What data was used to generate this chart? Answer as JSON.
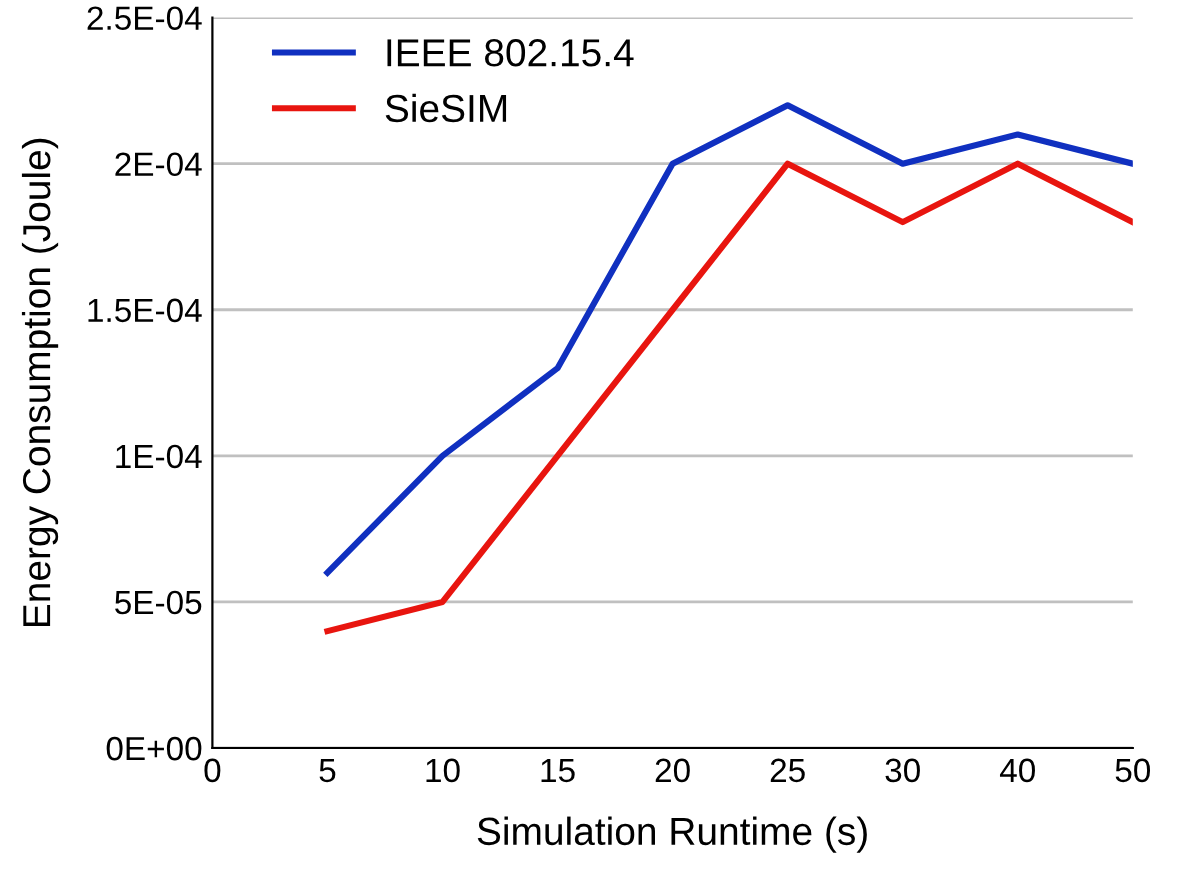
{
  "chart_data": {
    "type": "line",
    "xlabel": "Simulation Runtime (s)",
    "ylabel": "Energy Consumption (Joule)",
    "categories": [
      "0",
      "5",
      "10",
      "15",
      "20",
      "25",
      "30",
      "40",
      "50"
    ],
    "series": [
      {
        "name": "IEEE 802.15.4",
        "color": "#1030c0",
        "values": [
          null,
          6e-05,
          0.0001,
          0.00013,
          0.0002,
          0.00022,
          0.0002,
          0.00021,
          0.0002
        ]
      },
      {
        "name": "SieSIM",
        "color": "#e8150f",
        "values": [
          null,
          4e-05,
          5e-05,
          0.0001,
          0.00015,
          0.0002,
          0.00018,
          0.0002,
          0.00018
        ]
      }
    ],
    "ylim": [
      0,
      0.00025
    ],
    "yticks": [
      {
        "value": 0,
        "label": "0E+00"
      },
      {
        "value": 5e-05,
        "label": "5E-05"
      },
      {
        "value": 0.0001,
        "label": "1E-04"
      },
      {
        "value": 0.00015,
        "label": "1.5E-04"
      },
      {
        "value": 0.0002,
        "label": "2E-04"
      },
      {
        "value": 0.00025,
        "label": "2.5E-04"
      }
    ],
    "grid": "y",
    "legend": "top left",
    "marker": "none",
    "line_style": "solid"
  }
}
